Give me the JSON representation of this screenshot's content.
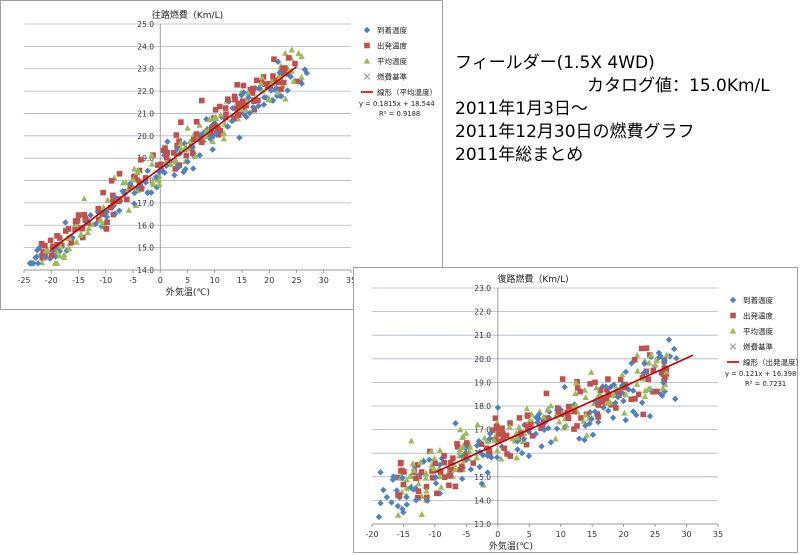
{
  "caption": {
    "line1": "フィールダー(1.5X 4WD)",
    "line2": "カタログ値：15.0Km/L",
    "line3": "2011年1月3日～",
    "line4": "2011年12月30日の燃費グラフ",
    "line5": "2011年総まとめ"
  },
  "chart_data": [
    {
      "type": "scatter",
      "title": "往路燃費（Km/L)",
      "xlabel": "外気温(℃)",
      "ylabel": "",
      "xlim": [
        -25,
        35
      ],
      "ylim": [
        14.0,
        25.0
      ],
      "xticks": [
        -25,
        -20,
        -15,
        -10,
        -5,
        0,
        5,
        10,
        15,
        20,
        25,
        30,
        35
      ],
      "yticks": [
        "14.0",
        "15.0",
        "16.0",
        "17.0",
        "18.0",
        "19.0",
        "20.0",
        "21.0",
        "22.0",
        "23.0",
        "24.0",
        "25.0"
      ],
      "grid": "horizontal",
      "legend_position": "right",
      "series": [
        {
          "name": "到着温度",
          "marker": "diamond",
          "color": "#4f81bd",
          "base_x": 1.5
        },
        {
          "name": "出発温度",
          "marker": "square",
          "color": "#c0504d",
          "base_x": -1.0
        },
        {
          "name": "平均温度",
          "marker": "triangle",
          "color": "#9bbb59",
          "base_x": 0.2
        },
        {
          "name": "燃費基準",
          "marker": "x",
          "color": "#a0a0a0"
        }
      ],
      "trendline": {
        "name": "線形（平均温度）",
        "slope": 0.1815,
        "intercept": 18.544,
        "x_range": [
          -20,
          25
        ],
        "color": "#c00000",
        "equation": "y = 0.1815x + 18.544",
        "r2": "R² = 0.9188"
      },
      "point_cloud": {
        "x_range": [
          -22,
          26
        ],
        "x_range_arrival": [
          -24,
          27
        ],
        "spread": 0.45,
        "points_per_series": 140
      }
    },
    {
      "type": "scatter",
      "title": "復路燃費（Km/L)",
      "xlabel": "外気温(℃)",
      "ylabel": "",
      "xlim": [
        -20,
        35
      ],
      "ylim": [
        13.0,
        23.0
      ],
      "xticks": [
        -20,
        -15,
        -10,
        -5,
        0,
        5,
        10,
        15,
        20,
        25,
        30,
        35
      ],
      "yticks": [
        "13.0",
        "14.0",
        "15.0",
        "16.0",
        "17.0",
        "18.0",
        "19.0",
        "20.0",
        "21.0",
        "22.0",
        "23.0"
      ],
      "grid": "horizontal",
      "legend_position": "right",
      "series": [
        {
          "name": "到着温度",
          "marker": "diamond",
          "color": "#4f81bd",
          "base_x": 1.5
        },
        {
          "name": "出発温度",
          "marker": "square",
          "color": "#c0504d",
          "base_x": -1.0
        },
        {
          "name": "平均温度",
          "marker": "triangle",
          "color": "#9bbb59",
          "base_x": 0.2
        },
        {
          "name": "燃費基準",
          "marker": "x",
          "color": "#a0a0a0"
        }
      ],
      "trendline": {
        "name": "線形（出発温度）",
        "slope": 0.121,
        "intercept": 16.398,
        "x_range": [
          -10,
          31
        ],
        "color": "#c00000",
        "equation": "y = 0.121x + 16.398",
        "r2": "R² = 0.7231"
      },
      "point_cloud": {
        "x_range": [
          -16,
          27
        ],
        "x_range_arrival": [
          -19,
          29
        ],
        "spread": 0.6,
        "points_per_series": 140
      }
    }
  ]
}
